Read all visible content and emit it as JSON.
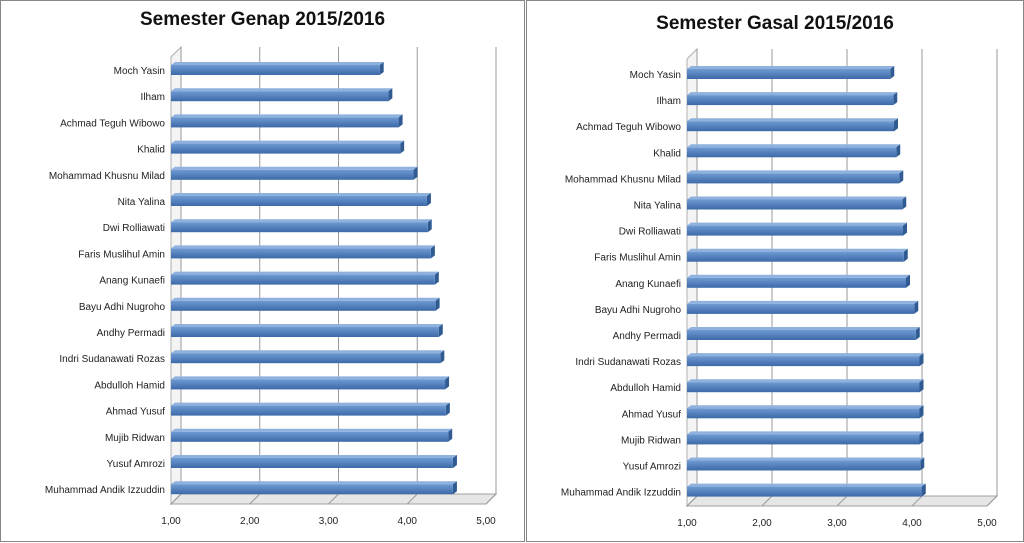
{
  "chart_data": [
    {
      "type": "bar",
      "orientation": "horizontal",
      "title": "Semester Genap 2015/2016",
      "xlim": [
        1,
        5
      ],
      "ticks": [
        "1,00",
        "2,00",
        "3,00",
        "4,00",
        "5,00"
      ],
      "grid": true,
      "bar_color": "#4a7ebb",
      "categories": [
        "Moch Yasin",
        "Ilham",
        "Achmad Teguh Wibowo",
        "Khalid",
        "Mohammad Khusnu Milad",
        "Nita Yalina",
        "Dwi Rolliawati",
        "Faris Muslihul Amin",
        "Anang Kunaefi",
        "Bayu Adhi Nugroho",
        "Andhy Permadi",
        "Indri Sudanawati Rozas",
        "Abdulloh Hamid",
        "Ahmad Yusuf",
        "Mujib Ridwan",
        "Yusuf Amrozi",
        "Muhammad Andik Izzuddin"
      ],
      "values": [
        3.65,
        3.76,
        3.89,
        3.91,
        4.08,
        4.25,
        4.26,
        4.3,
        4.35,
        4.36,
        4.4,
        4.42,
        4.48,
        4.49,
        4.52,
        4.58,
        4.58
      ]
    },
    {
      "type": "bar",
      "orientation": "horizontal",
      "title": "Semester Gasal 2015/2016",
      "xlim": [
        1,
        5
      ],
      "ticks": [
        "1,00",
        "2,00",
        "3,00",
        "4,00",
        "5,00"
      ],
      "grid": true,
      "bar_color": "#4a7ebb",
      "categories": [
        "Moch Yasin",
        "Ilham",
        "Achmad Teguh Wibowo",
        "Khalid",
        "Mohammad Khusnu Milad",
        "Nita Yalina",
        "Dwi Rolliawati",
        "Faris Muslihul Amin",
        "Anang Kunaefi",
        "Bayu Adhi Nugroho",
        "Andhy Permadi",
        "Indri Sudanawati Rozas",
        "Abdulloh Hamid",
        "Ahmad Yusuf",
        "Mujib Ridwan",
        "Yusuf Amrozi",
        "Muhammad Andik Izzuddin"
      ],
      "values": [
        3.71,
        3.75,
        3.76,
        3.79,
        3.83,
        3.87,
        3.88,
        3.89,
        3.92,
        4.03,
        4.05,
        4.1,
        4.1,
        4.1,
        4.1,
        4.11,
        4.13
      ]
    }
  ]
}
